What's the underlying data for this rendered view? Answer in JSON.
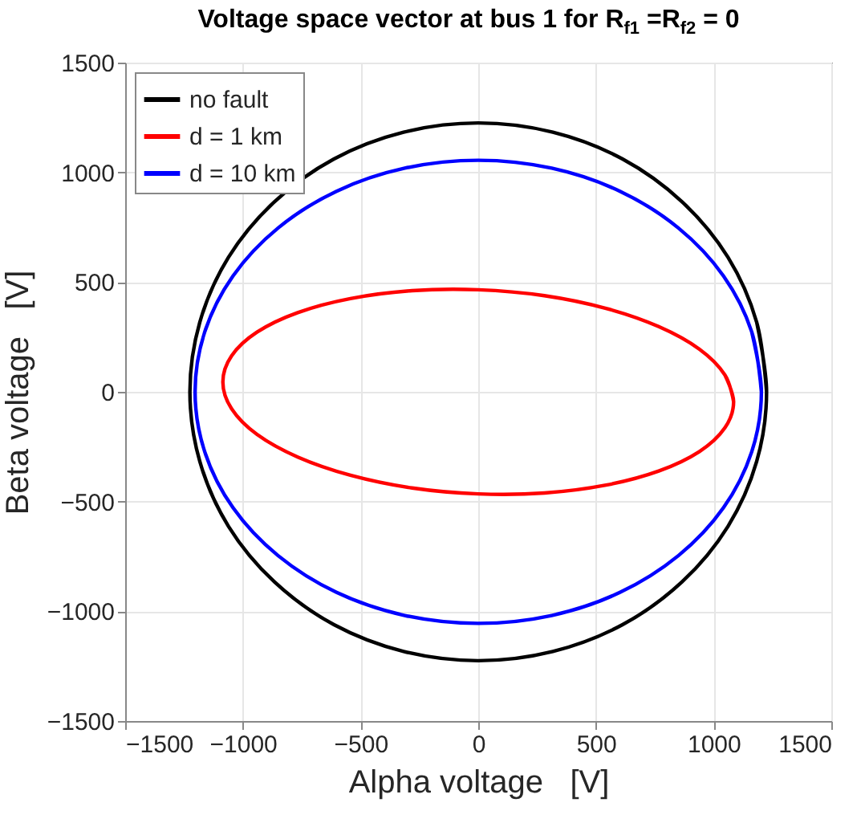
{
  "chart_data": {
    "type": "line",
    "title": "Voltage space vector at bus 1 for R$_{f1}$ =R$_{f2}$ = 0",
    "xlabel": "Alpha voltage   [V]",
    "ylabel": "Beta voltage   [V]",
    "xlim": [
      -1500,
      1500
    ],
    "ylim": [
      -1500,
      1500
    ],
    "xticks": [
      -1500,
      -1000,
      -500,
      0,
      500,
      1000,
      1500
    ],
    "yticks": [
      -1500,
      -1000,
      -500,
      0,
      500,
      1000,
      1500
    ],
    "grid": true,
    "legend": "top left",
    "series": [
      {
        "name": "no fault",
        "color": "#000000",
        "x": [
          1225,
          1183,
          1061,
          866,
          613,
          317,
          0,
          -317,
          -613,
          -866,
          -1061,
          -1183,
          -1225,
          -1183,
          -1061,
          -866,
          -613,
          -317,
          0,
          317,
          613,
          866,
          1061,
          1183,
          1225,
          1183
        ],
        "values": [
          0,
          317,
          613,
          866,
          1061,
          1183,
          1225,
          1183,
          1061,
          866,
          613,
          317,
          0,
          -317,
          -613,
          -866,
          -1061,
          -1183,
          -1225,
          -1183,
          -1061,
          -866,
          -613,
          -317,
          0,
          317
        ]
      },
      {
        "name": "d = 1 km",
        "color": "#ff0000",
        "x": [
          1085,
          1048,
          940,
          767,
          543,
          281,
          0,
          -281,
          -543,
          -767,
          -940,
          -1048,
          -1085,
          -1048,
          -940,
          -767,
          -543,
          -281,
          0,
          281,
          543,
          767,
          940,
          1048,
          1085,
          1048
        ],
        "values": [
          -45,
          77,
          194,
          297,
          380,
          438,
          465,
          461,
          425,
          361,
          272,
          164,
          45,
          -77,
          -194,
          -297,
          -380,
          -438,
          -465,
          -461,
          -425,
          -361,
          -272,
          -164,
          -45,
          77
        ]
      },
      {
        "name": "d = 10 km",
        "color": "#0000ff",
        "x": [
          1203,
          1162,
          1042,
          851,
          602,
          312,
          0,
          -312,
          -602,
          -851,
          -1042,
          -1162,
          -1203,
          -1162,
          -1042,
          -851,
          -602,
          -312,
          0,
          312,
          602,
          851,
          1042,
          1162,
          1203,
          1162
        ],
        "values": [
          0,
          273,
          528,
          746,
          914,
          1019,
          1055,
          1019,
          914,
          746,
          528,
          273,
          0,
          -273,
          -528,
          -746,
          -914,
          -1019,
          -1055,
          -1019,
          -914,
          -746,
          -528,
          -273,
          0,
          273
        ]
      }
    ]
  }
}
